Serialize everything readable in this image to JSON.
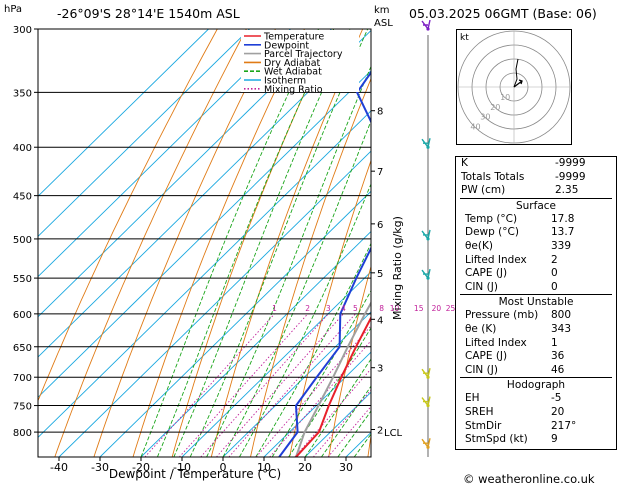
{
  "header": {
    "location": "-26°09'S 28°14'E 1540m ASL",
    "date": "05.03.2025 06GMT (Base: 06)",
    "hpa_label": "hPa",
    "km_label_top": "km",
    "km_label_bottom": "ASL"
  },
  "copyright": "© weatheronline.co.uk",
  "chart_data": {
    "type": "line",
    "xlabel": "Dewpoint / Temperature (°C)",
    "ylabel_right": "Mixing Ratio (g/kg)",
    "x_ticks": [
      "-40",
      "-30",
      "-20",
      "-10",
      "0",
      "10",
      "20",
      "30"
    ],
    "pressure_levels": [
      "300",
      "350",
      "400",
      "450",
      "500",
      "550",
      "600",
      "650",
      "700",
      "750",
      "800"
    ],
    "km_ticks": [
      "8",
      "7",
      "6",
      "5",
      "4",
      "3",
      "2"
    ],
    "lcl_label": "LCL",
    "mixing_ratio_labels": [
      "1",
      "2",
      "3",
      "4",
      "5",
      "8",
      "10",
      "15",
      "20",
      "25"
    ],
    "legend": [
      {
        "name": "Temperature",
        "color": "#e8202a"
      },
      {
        "name": "Dewpoint",
        "color": "#1f3fd6"
      },
      {
        "name": "Parcel Trajectory",
        "color": "#a0a0a0"
      },
      {
        "name": "Dry Adiabat",
        "color": "#e07b16"
      },
      {
        "name": "Wet Adiabat",
        "color": "#1aa51a"
      },
      {
        "name": "Isotherm",
        "color": "#1aa8e0"
      },
      {
        "name": "Mixing Ratio",
        "color": "#c0209a"
      }
    ]
  },
  "hodograph": {
    "label": "kt",
    "ring_labels": [
      "10",
      "20",
      "30",
      "40"
    ]
  },
  "indices": {
    "K": {
      "label": "K",
      "value": "-9999"
    },
    "TT": {
      "label": "Totals Totals",
      "value": "-9999"
    },
    "PW": {
      "label": "PW (cm)",
      "value": "2.35"
    }
  },
  "surface": {
    "title": "Surface",
    "rows": [
      {
        "label": "Temp (°C)",
        "value": "17.8"
      },
      {
        "label": "Dewp (°C)",
        "value": "13.7"
      },
      {
        "label": "θe(K)",
        "value": "339"
      },
      {
        "label": "Lifted Index",
        "value": "2"
      },
      {
        "label": "CAPE (J)",
        "value": "0"
      },
      {
        "label": "CIN (J)",
        "value": "0"
      }
    ]
  },
  "unstable": {
    "title": "Most Unstable",
    "rows": [
      {
        "label": "Pressure (mb)",
        "value": "800"
      },
      {
        "label": "θe (K)",
        "value": "343"
      },
      {
        "label": "Lifted Index",
        "value": "1"
      },
      {
        "label": "CAPE (J)",
        "value": "36"
      },
      {
        "label": "CIN (J)",
        "value": "46"
      }
    ]
  },
  "hodo_params": {
    "title": "Hodograph",
    "rows": [
      {
        "label": "EH",
        "value": "-5"
      },
      {
        "label": "SREH",
        "value": "20"
      },
      {
        "label": "StmDir",
        "value": "217°"
      },
      {
        "label": "StmSpd (kt)",
        "value": "9"
      }
    ]
  }
}
